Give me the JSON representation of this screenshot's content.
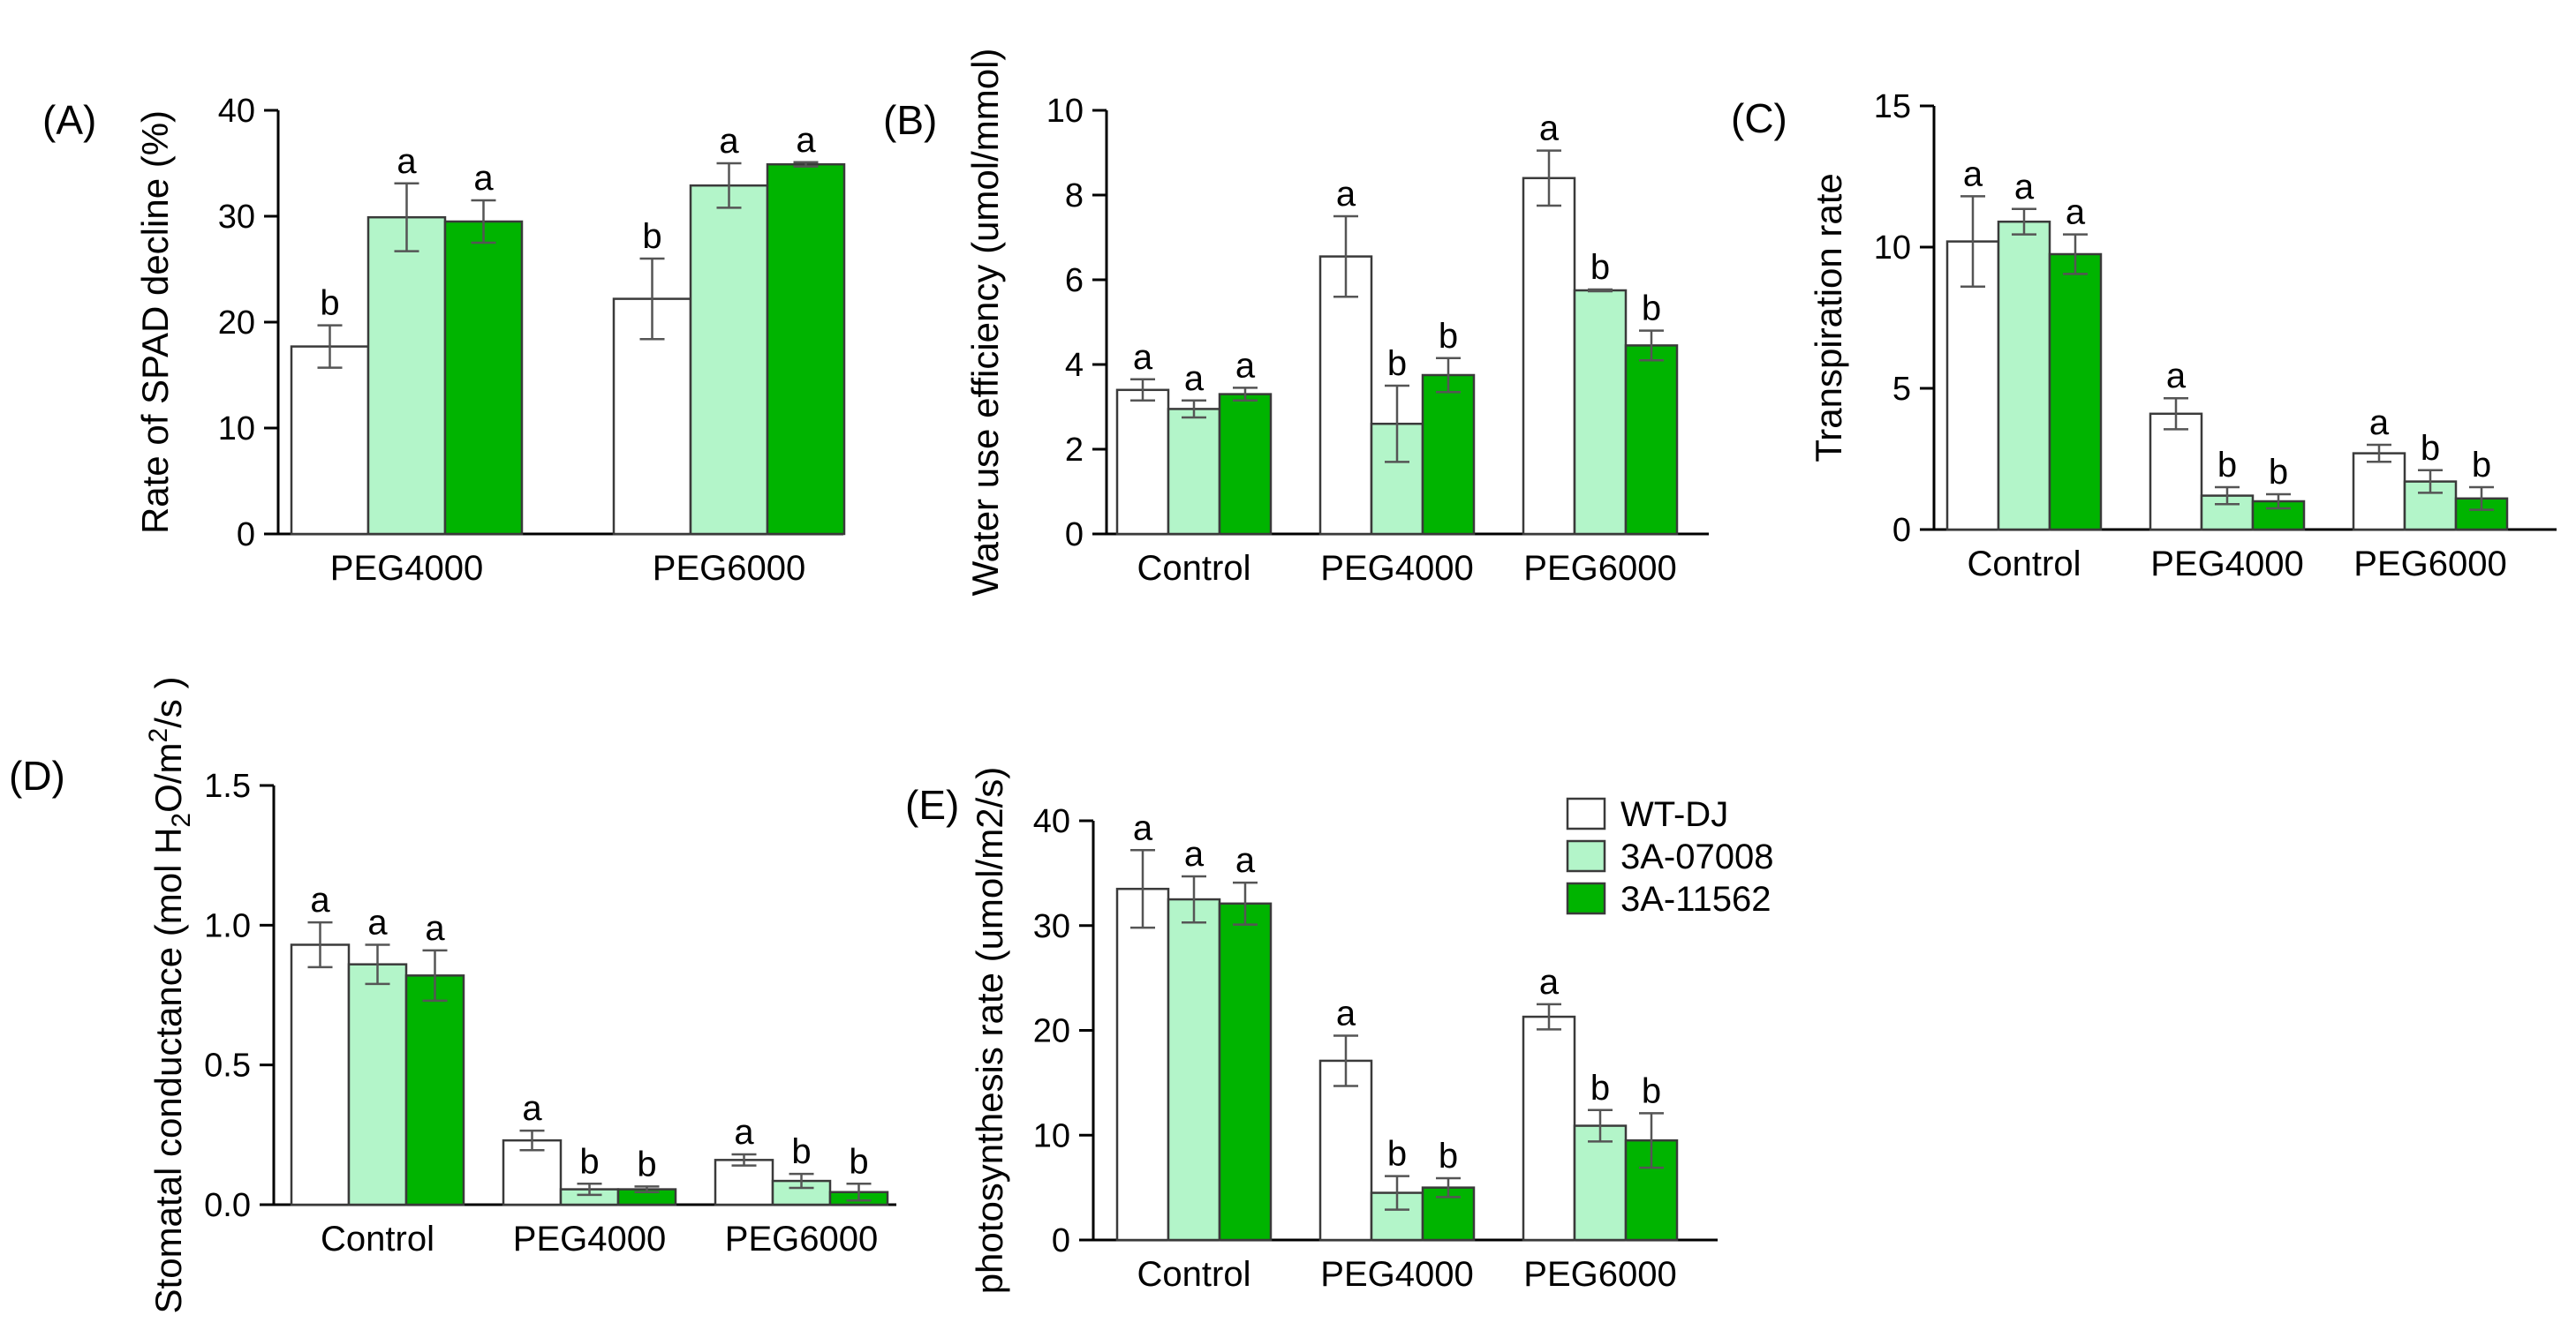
{
  "series_names": [
    "WT-DJ",
    "3A-07008",
    "3A-11562"
  ],
  "colors": {
    "WT-DJ": "#ffffff",
    "3A-07008": "#b3f5c9",
    "3A-11562": "#00b400",
    "stroke": "#3a3a3a",
    "error_bar": "#555555"
  },
  "legend": {
    "items": [
      {
        "label": "WT-DJ",
        "color": "#ffffff"
      },
      {
        "label": "3A-07008",
        "color": "#b3f5c9"
      },
      {
        "label": "3A-11562",
        "color": "#00b400"
      }
    ]
  },
  "chart_data": [
    {
      "id": "A",
      "panel_label": "(A)",
      "type": "bar",
      "ylabel": "Rate of SPAD decline (%)",
      "ylim": [
        0,
        40
      ],
      "yticks": [
        0,
        10,
        20,
        30,
        40
      ],
      "categories": [
        "PEG4000",
        "PEG6000"
      ],
      "series": [
        {
          "name": "WT-DJ",
          "values": [
            17.7,
            22.2
          ],
          "errors": [
            2.0,
            3.8
          ],
          "sig": [
            "b",
            "b"
          ]
        },
        {
          "name": "3A-07008",
          "values": [
            29.9,
            32.9
          ],
          "errors": [
            3.2,
            2.1
          ],
          "sig": [
            "a",
            "a"
          ]
        },
        {
          "name": "3A-11562",
          "values": [
            29.5,
            34.9
          ],
          "errors": [
            2.0,
            0.2
          ],
          "sig": [
            "a",
            "a"
          ]
        }
      ]
    },
    {
      "id": "B",
      "panel_label": "(B)",
      "type": "bar",
      "ylabel": "Water use efficiency (umol/mmol)",
      "ylim": [
        0,
        10
      ],
      "yticks": [
        0,
        2,
        4,
        6,
        8,
        10
      ],
      "categories": [
        "Control",
        "PEG4000",
        "PEG6000"
      ],
      "series": [
        {
          "name": "WT-DJ",
          "values": [
            3.4,
            6.55,
            8.4
          ],
          "errors": [
            0.25,
            0.95,
            0.65
          ],
          "sig": [
            "a",
            "a",
            "a"
          ]
        },
        {
          "name": "3A-07008",
          "values": [
            2.95,
            2.6,
            5.75
          ],
          "errors": [
            0.2,
            0.9,
            0.02
          ],
          "sig": [
            "a",
            "b",
            "b"
          ]
        },
        {
          "name": "3A-11562",
          "values": [
            3.3,
            3.75,
            4.45
          ],
          "errors": [
            0.15,
            0.4,
            0.35
          ],
          "sig": [
            "a",
            "b",
            "b"
          ]
        }
      ]
    },
    {
      "id": "C",
      "panel_label": "(C)",
      "type": "bar",
      "ylabel": "Transpiration rate",
      "ylim": [
        0,
        15
      ],
      "yticks": [
        0,
        5,
        10,
        15
      ],
      "categories": [
        "Control",
        "PEG4000",
        "PEG6000"
      ],
      "series": [
        {
          "name": "WT-DJ",
          "values": [
            10.2,
            4.1,
            2.7
          ],
          "errors": [
            1.6,
            0.55,
            0.3
          ],
          "sig": [
            "a",
            "a",
            "a"
          ]
        },
        {
          "name": "3A-07008",
          "values": [
            10.9,
            1.2,
            1.7
          ],
          "errors": [
            0.45,
            0.3,
            0.4
          ],
          "sig": [
            "a",
            "b",
            "b"
          ]
        },
        {
          "name": "3A-11562",
          "values": [
            9.75,
            1.0,
            1.1
          ],
          "errors": [
            0.7,
            0.25,
            0.4
          ],
          "sig": [
            "a",
            "b",
            "b"
          ]
        }
      ]
    },
    {
      "id": "D",
      "panel_label": "(D)",
      "type": "bar",
      "ylabel_prefix": "Stomatal conductance (mol H",
      "ylabel_sub": "2",
      "ylabel_mid": "O/m",
      "ylabel_sup": "2",
      "ylabel_suffix": "/s )",
      "ylim": [
        0,
        1.5
      ],
      "yticks": [
        0.0,
        0.5,
        1.0,
        1.5
      ],
      "ytick_labels": [
        "0.0",
        "0.5",
        "1.0",
        "1.5"
      ],
      "categories": [
        "Control",
        "PEG4000",
        "PEG6000"
      ],
      "series": [
        {
          "name": "WT-DJ",
          "values": [
            0.93,
            0.23,
            0.16
          ],
          "errors": [
            0.08,
            0.035,
            0.02
          ],
          "sig": [
            "a",
            "a",
            "a"
          ]
        },
        {
          "name": "3A-07008",
          "values": [
            0.86,
            0.055,
            0.085
          ],
          "errors": [
            0.07,
            0.02,
            0.025
          ],
          "sig": [
            "a",
            "b",
            "b"
          ]
        },
        {
          "name": "3A-11562",
          "values": [
            0.82,
            0.055,
            0.045
          ],
          "errors": [
            0.09,
            0.01,
            0.03
          ],
          "sig": [
            "a",
            "b",
            "b"
          ]
        }
      ]
    },
    {
      "id": "E",
      "panel_label": "(E)",
      "type": "bar",
      "ylabel": "photosynthesis rate (umol/m2/s)",
      "ylim": [
        0,
        40
      ],
      "yticks": [
        0,
        10,
        20,
        30,
        40
      ],
      "categories": [
        "Control",
        "PEG4000",
        "PEG6000"
      ],
      "series": [
        {
          "name": "WT-DJ",
          "values": [
            33.5,
            17.1,
            21.3
          ],
          "errors": [
            3.7,
            2.4,
            1.2
          ],
          "sig": [
            "a",
            "a",
            "a"
          ]
        },
        {
          "name": "3A-07008",
          "values": [
            32.5,
            4.5,
            10.9
          ],
          "errors": [
            2.2,
            1.6,
            1.5
          ],
          "sig": [
            "a",
            "b",
            "b"
          ]
        },
        {
          "name": "3A-11562",
          "values": [
            32.1,
            5.0,
            9.5
          ],
          "errors": [
            2.0,
            0.9,
            2.6
          ],
          "sig": [
            "a",
            "b",
            "b"
          ]
        }
      ]
    }
  ]
}
